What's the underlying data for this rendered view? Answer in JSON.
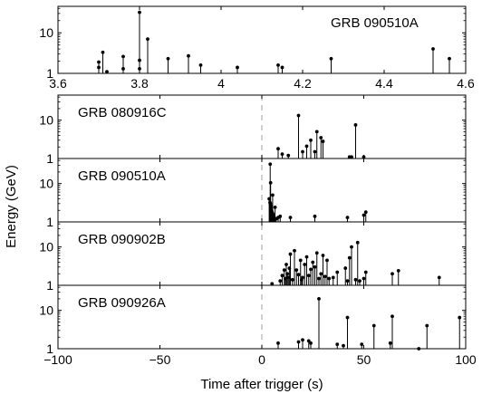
{
  "chart_data": [
    {
      "type": "stem",
      "panel": "inset",
      "label": "GRB 090510A",
      "xlim": [
        3.6,
        4.6
      ],
      "xticks": [
        "3.6",
        "3.8",
        "4",
        "4.2",
        "4.4",
        "4.6"
      ],
      "ylim": [
        1,
        45
      ],
      "yscale": "log",
      "yticks": [
        "1",
        "10"
      ],
      "points": [
        [
          3.7,
          1.4
        ],
        [
          3.7,
          1.9
        ],
        [
          3.71,
          3.3
        ],
        [
          3.72,
          1.1
        ],
        [
          3.76,
          1.3
        ],
        [
          3.76,
          2.6
        ],
        [
          3.8,
          1.3
        ],
        [
          3.8,
          2.1
        ],
        [
          3.8,
          32
        ],
        [
          3.82,
          7.0
        ],
        [
          3.87,
          2.3
        ],
        [
          3.92,
          2.7
        ],
        [
          3.95,
          1.6
        ],
        [
          4.04,
          1.4
        ],
        [
          4.14,
          1.6
        ],
        [
          4.15,
          1.4
        ],
        [
          4.27,
          2.3
        ],
        [
          4.52,
          4.0
        ],
        [
          4.56,
          2.3
        ]
      ]
    },
    {
      "type": "stem",
      "panel": "main-1",
      "label": "GRB 080916C",
      "xlim": [
        -100,
        100
      ],
      "ylim": [
        1,
        45
      ],
      "yscale": "log",
      "yticks": [
        "1",
        "10"
      ],
      "points": [
        [
          8,
          1.8
        ],
        [
          10,
          1.3
        ],
        [
          13,
          1.2
        ],
        [
          18,
          13.2
        ],
        [
          20,
          1.5
        ],
        [
          22,
          2.1
        ],
        [
          24,
          3.0
        ],
        [
          26,
          1.5
        ],
        [
          27,
          5.0
        ],
        [
          29,
          3.5
        ],
        [
          30,
          2.8
        ],
        [
          43,
          1.1
        ],
        [
          44,
          1.1
        ],
        [
          46,
          7.5
        ],
        [
          50,
          1.1
        ]
      ]
    },
    {
      "type": "stem",
      "panel": "main-2",
      "label": "GRB 090510A",
      "xlim": [
        -100,
        100
      ],
      "ylim": [
        1,
        45
      ],
      "yscale": "log",
      "yticks": [
        "1",
        "10"
      ],
      "points": [
        [
          3.6,
          4.0
        ],
        [
          4.0,
          3.2
        ],
        [
          4.2,
          3.0
        ],
        [
          4.4,
          2.6
        ],
        [
          4.6,
          2.2
        ],
        [
          4.8,
          2.0
        ],
        [
          5.0,
          1.8
        ],
        [
          5.2,
          1.7
        ],
        [
          5.4,
          1.6
        ],
        [
          5.6,
          1.5
        ],
        [
          5.8,
          1.4
        ],
        [
          6.0,
          1.3
        ],
        [
          6.2,
          1.2
        ],
        [
          4.1,
          32
        ],
        [
          4.3,
          10.5
        ],
        [
          5.3,
          5.0
        ],
        [
          6.5,
          2.4
        ],
        [
          7.0,
          1.2
        ],
        [
          8.0,
          1.3
        ],
        [
          9.0,
          1.4
        ],
        [
          14,
          1.3
        ],
        [
          26,
          1.4
        ],
        [
          42,
          1.3
        ],
        [
          50,
          1.5
        ],
        [
          51,
          1.8
        ]
      ]
    },
    {
      "type": "stem",
      "panel": "main-3",
      "label": "GRB 090902B",
      "xlim": [
        -100,
        100
      ],
      "ylim": [
        1,
        45
      ],
      "yscale": "log",
      "yticks": [
        "1",
        "10"
      ],
      "points": [
        [
          5,
          1.1
        ],
        [
          9,
          1.3
        ],
        [
          10,
          1.8
        ],
        [
          11,
          2.5
        ],
        [
          11.5,
          1.5
        ],
        [
          12,
          3.5
        ],
        [
          12.5,
          2.0
        ],
        [
          13,
          1.6
        ],
        [
          13.5,
          2.8
        ],
        [
          14,
          6.5
        ],
        [
          15,
          1.4
        ],
        [
          16,
          8.0
        ],
        [
          17,
          2.5
        ],
        [
          18,
          1.9
        ],
        [
          19,
          4.5
        ],
        [
          19.5,
          1.4
        ],
        [
          20,
          1.6
        ],
        [
          21,
          3.5
        ],
        [
          22,
          5.5
        ],
        [
          23,
          1.8
        ],
        [
          24,
          2.6
        ],
        [
          25,
          4.0
        ],
        [
          26,
          3.0
        ],
        [
          27,
          7.0
        ],
        [
          28,
          1.5
        ],
        [
          29,
          2.0
        ],
        [
          30,
          6.0
        ],
        [
          31,
          1.7
        ],
        [
          32,
          4.5
        ],
        [
          33,
          1.5
        ],
        [
          35,
          1.6
        ],
        [
          37,
          2.2
        ],
        [
          41,
          2.8
        ],
        [
          42,
          1.3
        ],
        [
          43,
          5.2
        ],
        [
          44,
          10.0
        ],
        [
          46,
          1.4
        ],
        [
          47,
          13.0
        ],
        [
          48,
          1.3
        ],
        [
          50,
          1.5
        ],
        [
          51,
          2.2
        ],
        [
          64,
          2.0
        ],
        [
          67,
          2.4
        ],
        [
          87,
          1.6
        ]
      ]
    },
    {
      "type": "stem",
      "panel": "main-4",
      "label": "GRB 090926A",
      "xlim": [
        -100,
        100
      ],
      "ylim": [
        1,
        45
      ],
      "yscale": "log",
      "yticks": [
        "1",
        "10"
      ],
      "points": [
        [
          8,
          1.4
        ],
        [
          18,
          1.5
        ],
        [
          20,
          1.7
        ],
        [
          23,
          1.6
        ],
        [
          24,
          1.4
        ],
        [
          28,
          20.0
        ],
        [
          37,
          1.3
        ],
        [
          40,
          1.2
        ],
        [
          42,
          6.5
        ],
        [
          49,
          1.3
        ],
        [
          55,
          4.0
        ],
        [
          63,
          1.4
        ],
        [
          64,
          7.0
        ],
        [
          77,
          1.0
        ],
        [
          81,
          4.0
        ],
        [
          97,
          6.5
        ]
      ]
    }
  ],
  "axes": {
    "inset_xticks": [
      "3.6",
      "3.8",
      "4",
      "4.2",
      "4.4",
      "4.6"
    ],
    "main_xticks": [
      "−100",
      "−50",
      "0",
      "50",
      "100"
    ],
    "main_xtick_values": [
      -100,
      -50,
      0,
      50,
      100
    ],
    "xlabel": "Time after trigger (s)",
    "ylabel": "Energy (GeV)"
  },
  "trigger_line_color": "#b0b0b0",
  "stem_color": "#000000"
}
